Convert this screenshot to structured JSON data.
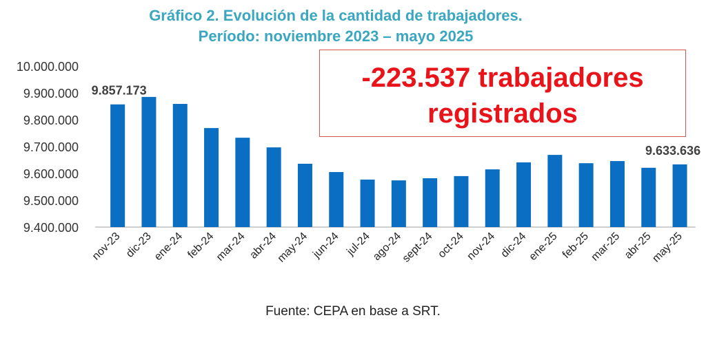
{
  "chart_data": {
    "type": "bar",
    "title": "Gráfico 2. Evolución de la cantidad de trabajadores.",
    "subtitle": "Período: noviembre 2023 – mayo 2025",
    "categories": [
      "nov-23",
      "dic-23",
      "ene-24",
      "feb-24",
      "mar-24",
      "abr-24",
      "may-24",
      "jun-24",
      "jul-24",
      "ago-24",
      "sept-24",
      "oct-24",
      "nov-24",
      "dic-24",
      "ene-25",
      "feb-25",
      "mar-25",
      "abr-25",
      "may-25"
    ],
    "values": [
      9857173,
      9885000,
      9859000,
      9769000,
      9733000,
      9697000,
      9636000,
      9605000,
      9577000,
      9574000,
      9582000,
      9590000,
      9615000,
      9641000,
      9669000,
      9638000,
      9646000,
      9621000,
      9633636
    ],
    "data_labels": [
      {
        "index": 0,
        "text": "9.857.173"
      },
      {
        "index": 18,
        "text": "9.633.636"
      }
    ],
    "yticks": [
      "9.400.000",
      "9.500.000",
      "9.600.000",
      "9.700.000",
      "9.800.000",
      "9.900.000",
      "10.000.000"
    ],
    "ylim": [
      9400000,
      10000000
    ],
    "xlabel": "",
    "ylabel": "",
    "grid": false,
    "bar_color": "#0a6fc2",
    "annotation": {
      "line1": "-223.537 trabajadores",
      "line2": "registrados"
    },
    "source": "Fuente: CEPA en base a SRT."
  }
}
